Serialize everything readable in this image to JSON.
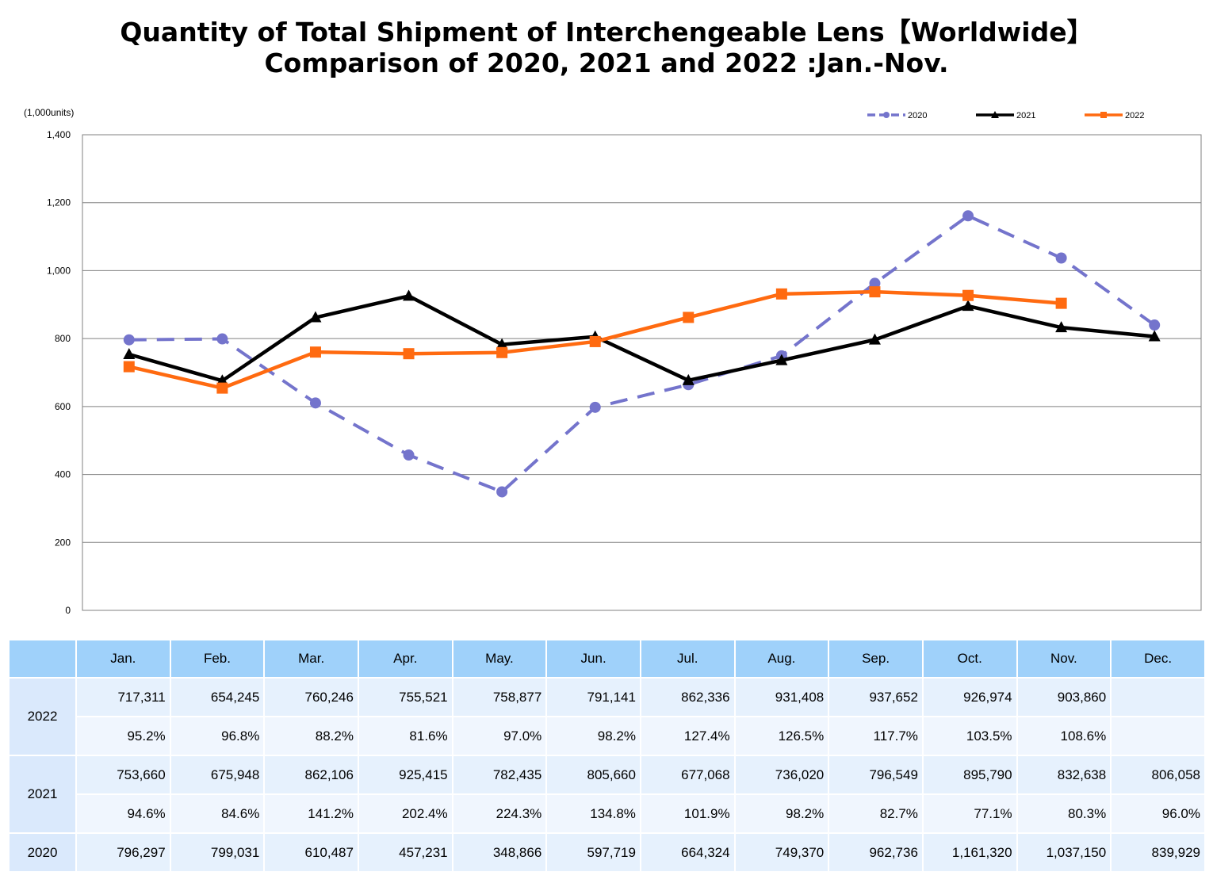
{
  "title_line1": "Quantity of Total Shipment of Interchengeable Lens【Worldwide】",
  "title_line2": "Comparison of 2020, 2021 and 2022 :Jan.-Nov.",
  "chart_data": {
    "type": "line",
    "title": "Quantity of Total Shipment of Interchengeable Lens【Worldwide】 Comparison of 2020, 2021 and 2022 :Jan.-Nov.",
    "unit_label": "(1,000units)",
    "categories": [
      "Jan.",
      "Feb.",
      "Mar.",
      "Apr.",
      "May.",
      "Jun.",
      "Jul.",
      "Aug.",
      "Sep.",
      "Oct.",
      "Nov.",
      "Dec."
    ],
    "ylim": [
      0,
      1400
    ],
    "yticks": [
      0,
      200,
      400,
      600,
      800,
      1000,
      1200,
      1400
    ],
    "ytick_labels": [
      "0",
      "200",
      "400",
      "600",
      "800",
      "1,000",
      "1,200",
      "1,400"
    ],
    "grid": true,
    "legend_position": "top-right",
    "series": [
      {
        "name": "2020",
        "color": "#7474cc",
        "dashed": true,
        "marker": "circle",
        "values": [
          796.297,
          799.031,
          610.487,
          457.231,
          348.866,
          597.719,
          664.324,
          749.37,
          962.736,
          1161.32,
          1037.15,
          839.929
        ]
      },
      {
        "name": "2021",
        "color": "#000000",
        "dashed": false,
        "marker": "triangle",
        "values": [
          753.66,
          675.948,
          862.106,
          925.415,
          782.435,
          805.66,
          677.068,
          736.02,
          796.549,
          895.79,
          832.638,
          806.058
        ]
      },
      {
        "name": "2022",
        "color": "#ff6a10",
        "dashed": false,
        "marker": "square",
        "values": [
          717.311,
          654.245,
          760.246,
          755.521,
          758.877,
          791.141,
          862.336,
          931.408,
          937.652,
          926.974,
          903.86,
          null
        ]
      }
    ]
  },
  "table": {
    "header": [
      "",
      "Jan.",
      "Feb.",
      "Mar.",
      "Apr.",
      "May.",
      "Jun.",
      "Jul.",
      "Aug.",
      "Sep.",
      "Oct.",
      "Nov.",
      "Dec."
    ],
    "groups": [
      {
        "year": "2022",
        "rows": [
          [
            "717,311",
            "654,245",
            "760,246",
            "755,521",
            "758,877",
            "791,141",
            "862,336",
            "931,408",
            "937,652",
            "926,974",
            "903,860",
            ""
          ],
          [
            "95.2%",
            "96.8%",
            "88.2%",
            "81.6%",
            "97.0%",
            "98.2%",
            "127.4%",
            "126.5%",
            "117.7%",
            "103.5%",
            "108.6%",
            ""
          ]
        ]
      },
      {
        "year": "2021",
        "rows": [
          [
            "753,660",
            "675,948",
            "862,106",
            "925,415",
            "782,435",
            "805,660",
            "677,068",
            "736,020",
            "796,549",
            "895,790",
            "832,638",
            "806,058"
          ],
          [
            "94.6%",
            "84.6%",
            "141.2%",
            "202.4%",
            "224.3%",
            "134.8%",
            "101.9%",
            "98.2%",
            "82.7%",
            "77.1%",
            "80.3%",
            "96.0%"
          ]
        ]
      },
      {
        "year": "2020",
        "rows": [
          [
            "796,297",
            "799,031",
            "610,487",
            "457,231",
            "348,866",
            "597,719",
            "664,324",
            "749,370",
            "962,736",
            "1,161,320",
            "1,037,150",
            "839,929"
          ]
        ]
      }
    ]
  }
}
